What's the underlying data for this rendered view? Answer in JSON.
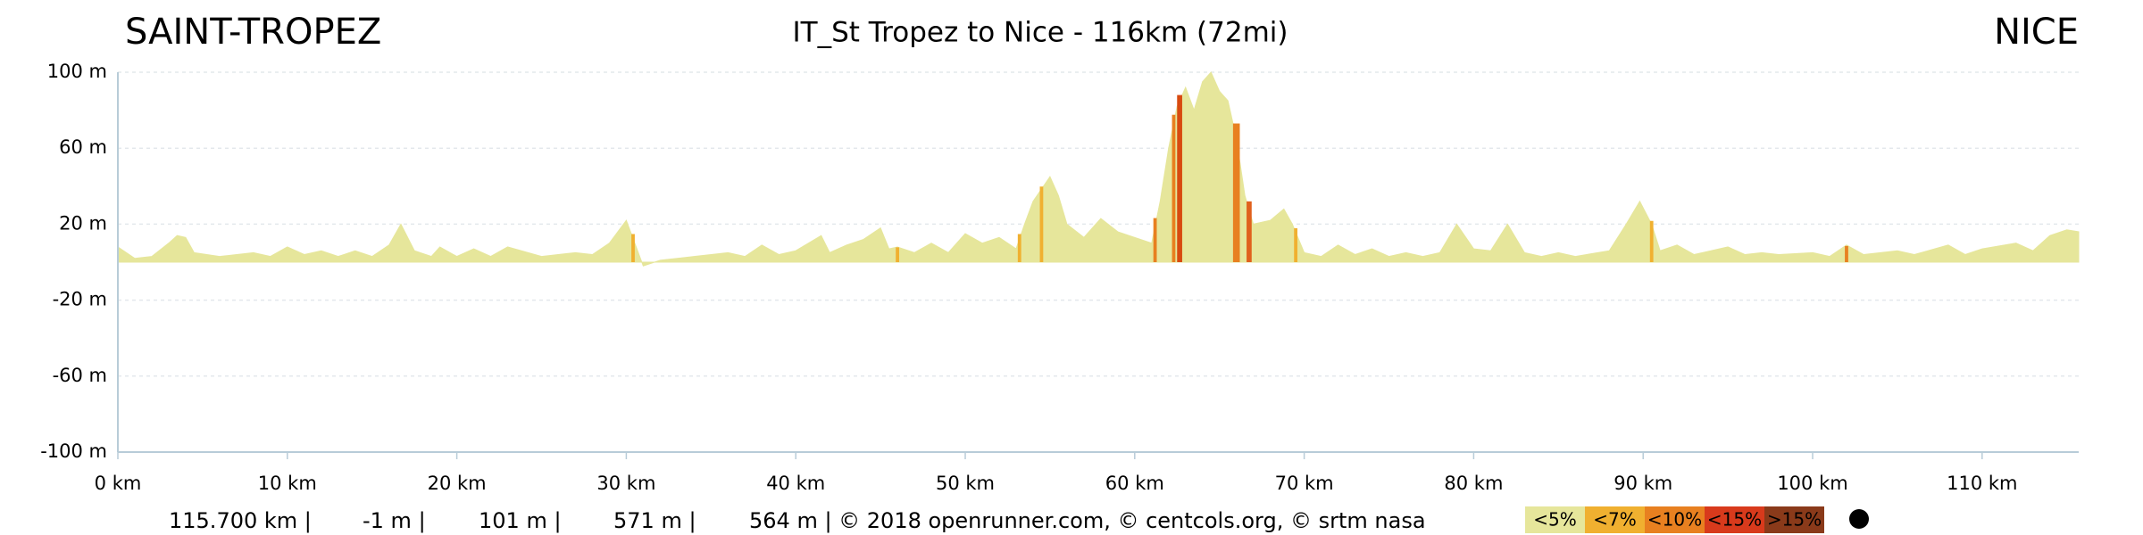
{
  "chart_data": {
    "type": "area",
    "title": "IT_St Tropez to Nice - 116km (72mi)",
    "start_label": "SAINT-TROPEZ",
    "end_label": "NICE",
    "color": "#e6e69b",
    "grid": true,
    "x": [
      0,
      1,
      2,
      3,
      3.5,
      4,
      4.5,
      6,
      8,
      9,
      10,
      11,
      12,
      13,
      14,
      15,
      16,
      16.7,
      17.5,
      18.5,
      19,
      20,
      21,
      22,
      23,
      25,
      27,
      28,
      29,
      30,
      30.5,
      31,
      32,
      34,
      36,
      37,
      38,
      39,
      40,
      41.5,
      42,
      43,
      44,
      45,
      45.5,
      46,
      47,
      48,
      49,
      50,
      51,
      52,
      53,
      53.5,
      54,
      55,
      55.5,
      56,
      57,
      58,
      59,
      60,
      61,
      61.5,
      62,
      62.5,
      63,
      63.5,
      64,
      64.5,
      65,
      65.5,
      66,
      66.5,
      67,
      68,
      68.8,
      69.3,
      70,
      71,
      72,
      73,
      74,
      75,
      76,
      77,
      78,
      79,
      80,
      81,
      82,
      83,
      84,
      85,
      86,
      88,
      89,
      89.8,
      90.5,
      91,
      92,
      93,
      95,
      96,
      97,
      98,
      100,
      101,
      102,
      103,
      105,
      106,
      108,
      109,
      110,
      112,
      113,
      114,
      115,
      115.7
    ],
    "values": [
      8,
      2,
      3,
      10,
      14,
      13,
      5,
      3,
      5,
      3,
      8,
      4,
      6,
      3,
      6,
      3,
      9,
      20,
      6,
      3,
      8,
      3,
      7,
      3,
      8,
      3,
      5,
      4,
      10,
      22,
      10,
      -2,
      1,
      3,
      5,
      3,
      9,
      4,
      6,
      14,
      5,
      9,
      12,
      18,
      7,
      8,
      5,
      10,
      5,
      15,
      10,
      13,
      7,
      20,
      32,
      45,
      35,
      20,
      13,
      23,
      16,
      13,
      10,
      32,
      60,
      82,
      92,
      80,
      95,
      100,
      90,
      85,
      65,
      35,
      20,
      22,
      28,
      20,
      5,
      3,
      9,
      4,
      7,
      3,
      5,
      3,
      5,
      20,
      7,
      6,
      20,
      5,
      3,
      5,
      3,
      6,
      20,
      32,
      20,
      6,
      9,
      4,
      8,
      4,
      5,
      4,
      5,
      3,
      9,
      4,
      6,
      4,
      9,
      4,
      7,
      10,
      6,
      14,
      17,
      16
    ],
    "segments": [
      {
        "x0": 30.3,
        "x1": 30.5,
        "color": "#f0b030"
      },
      {
        "x0": 45.9,
        "x1": 46.1,
        "color": "#f0b030"
      },
      {
        "x0": 53.1,
        "x1": 53.3,
        "color": "#f0b030"
      },
      {
        "x0": 54.4,
        "x1": 54.6,
        "color": "#f0b030"
      },
      {
        "x0": 61.1,
        "x1": 61.3,
        "color": "#e88020"
      },
      {
        "x0": 62.2,
        "x1": 62.4,
        "color": "#e88020"
      },
      {
        "x0": 62.5,
        "x1": 62.8,
        "color": "#d84a10"
      },
      {
        "x0": 65.8,
        "x1": 66.2,
        "color": "#e88020"
      },
      {
        "x0": 66.6,
        "x1": 66.9,
        "color": "#e0601c"
      },
      {
        "x0": 69.4,
        "x1": 69.6,
        "color": "#f0b030"
      },
      {
        "x0": 90.4,
        "x1": 90.6,
        "color": "#f0b030"
      },
      {
        "x0": 101.9,
        "x1": 102.1,
        "color": "#e88020"
      }
    ],
    "xlim": [
      0,
      115.7
    ],
    "ylim": [
      -100,
      100
    ],
    "xticks": [
      {
        "value": 0,
        "label": "0 km"
      },
      {
        "value": 10,
        "label": "10 km"
      },
      {
        "value": 20,
        "label": "20 km"
      },
      {
        "value": 30,
        "label": "30 km"
      },
      {
        "value": 40,
        "label": "40 km"
      },
      {
        "value": 50,
        "label": "50 km"
      },
      {
        "value": 60,
        "label": "60 km"
      },
      {
        "value": 70,
        "label": "70 km"
      },
      {
        "value": 80,
        "label": "80 km"
      },
      {
        "value": 90,
        "label": "90 km"
      },
      {
        "value": 100,
        "label": "100 km"
      },
      {
        "value": 110,
        "label": "110 km"
      }
    ],
    "yticks": [
      {
        "value": 100,
        "label": "100 m"
      },
      {
        "value": 60,
        "label": "60 m"
      },
      {
        "value": 20,
        "label": "20 m"
      },
      {
        "value": -20,
        "label": "-20 m"
      },
      {
        "value": -60,
        "label": "-60 m"
      },
      {
        "value": -100,
        "label": "-100 m"
      }
    ],
    "footer": [
      "115.700 km |",
      "-1 m |",
      "101 m |",
      "571 m |",
      "564 m | © 2018 openrunner.com, © centcols.org, © srtm nasa"
    ],
    "legend": [
      {
        "label": "<5%",
        "color": "#e6e69b"
      },
      {
        "label": "<7%",
        "color": "#f0b030"
      },
      {
        "label": "<10%",
        "color": "#e88020"
      },
      {
        "label": "<15%",
        "color": "#d83a1c"
      },
      {
        "label": ">15%",
        "color": "#8a3a1a"
      }
    ]
  }
}
